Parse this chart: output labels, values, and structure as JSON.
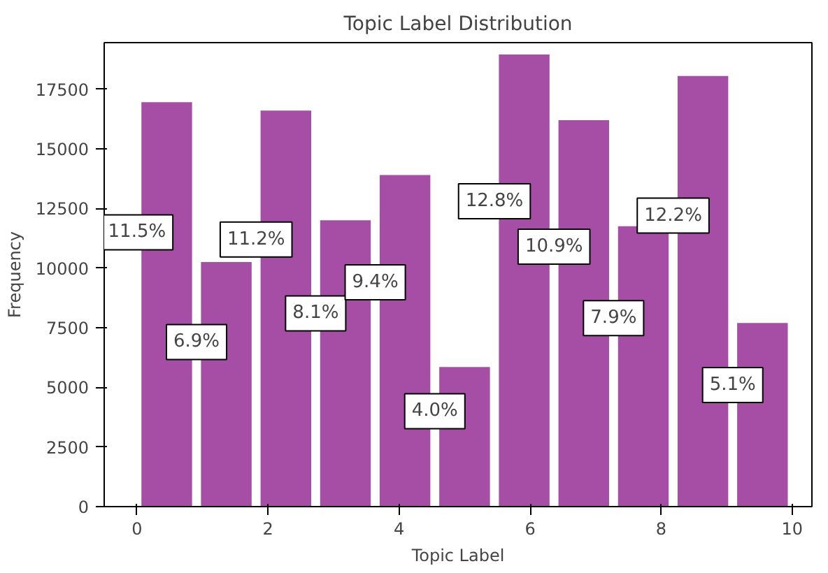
{
  "chart_data": {
    "type": "histogram",
    "title": "Topic Label Distribution",
    "xlabel": "Topic Label",
    "ylabel": "Frequency",
    "bins": [
      0,
      0.909,
      1.818,
      2.727,
      3.636,
      4.545,
      5.455,
      6.364,
      7.273,
      8.182,
      9.091,
      10
    ],
    "values": [
      16950,
      10250,
      16600,
      12000,
      13900,
      5850,
      18950,
      16200,
      11750,
      18050,
      7700
    ],
    "color": "#a64da6",
    "xlim": [
      -0.5,
      10.3
    ],
    "ylim": [
      0,
      19450
    ],
    "xticks": [
      0,
      2,
      4,
      6,
      8,
      10
    ],
    "yticks": [
      0,
      2500,
      5000,
      7500,
      10000,
      12500,
      15000,
      17500
    ],
    "grid": false,
    "annotations": [
      {
        "text": "11.5%",
        "x": 0,
        "y": 11500
      },
      {
        "text": "6.9%",
        "x": 0.909,
        "y": 6900
      },
      {
        "text": "11.2%",
        "x": 1.818,
        "y": 11200
      },
      {
        "text": "8.1%",
        "x": 2.727,
        "y": 8100
      },
      {
        "text": "9.4%",
        "x": 3.636,
        "y": 9400
      },
      {
        "text": "4.0%",
        "x": 4.545,
        "y": 4000
      },
      {
        "text": "12.8%",
        "x": 5.455,
        "y": 12800
      },
      {
        "text": "10.9%",
        "x": 6.364,
        "y": 10900
      },
      {
        "text": "7.9%",
        "x": 7.273,
        "y": 7900
      },
      {
        "text": "12.2%",
        "x": 8.182,
        "y": 12200
      },
      {
        "text": "5.1%",
        "x": 9.091,
        "y": 5100
      }
    ]
  }
}
